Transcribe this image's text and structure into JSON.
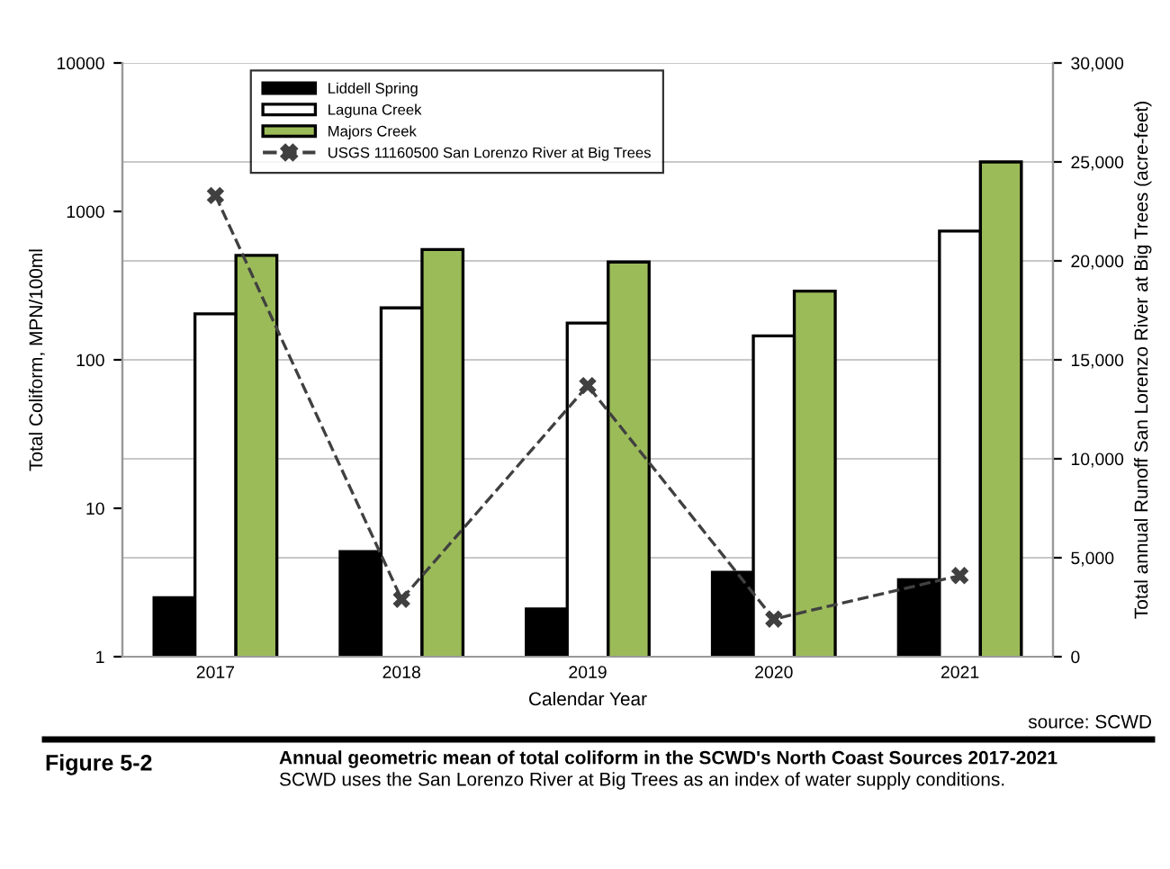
{
  "chart_data": {
    "type": "bar",
    "title": "Annual geometric mean of total coliform in the SCWD's North Coast Sources 2017-2021",
    "subtitle": "SCWD uses the San Lorenzo River at Big Trees as an index of water supply conditions.",
    "xlabel": "Calendar Year",
    "ylabel": "Total Coliform, MPN/100ml",
    "y2label": "Total annual Runoff San Lorenzo River at Big Trees (acre-feet)",
    "annotations": [
      "Figure 5-2",
      "source: SCWD"
    ],
    "categories": [
      "2017",
      "2018",
      "2019",
      "2020",
      "2021"
    ],
    "series": [
      {
        "name": "Liddell Spring",
        "color": "#000000",
        "values": [
          2.5,
          5.1,
          2.1,
          3.7,
          3.3
        ]
      },
      {
        "name": "Laguna Creek",
        "color": "#ffffff",
        "values": [
          204,
          224,
          177,
          145,
          737
        ]
      },
      {
        "name": "Majors Creek",
        "color": "#9bbb59",
        "values": [
          505,
          553,
          456,
          290,
          2155
        ]
      },
      {
        "name": "USGS 11160500 San Lorenzo River at Big Trees",
        "type": "line",
        "axis": "y2",
        "color": "#404040",
        "marker": "cross",
        "line_style": "dashed",
        "values": [
          23300,
          2900,
          13700,
          1900,
          4100
        ]
      }
    ],
    "log": "y",
    "ylim": [
      1,
      10000
    ],
    "yticks": [
      1,
      10,
      100,
      1000,
      10000
    ],
    "y2lim": [
      0,
      30000
    ],
    "y2ticks": [
      {
        "value": 0,
        "label": "0"
      },
      {
        "value": 5000,
        "label": "5,000"
      },
      {
        "value": 10000,
        "label": "10,000"
      },
      {
        "value": 15000,
        "label": "15,000"
      },
      {
        "value": 20000,
        "label": "20,000"
      },
      {
        "value": 25000,
        "label": "25,000"
      },
      {
        "value": 30000,
        "label": "30,000"
      }
    ],
    "grid": "y2",
    "legend": "top left"
  }
}
